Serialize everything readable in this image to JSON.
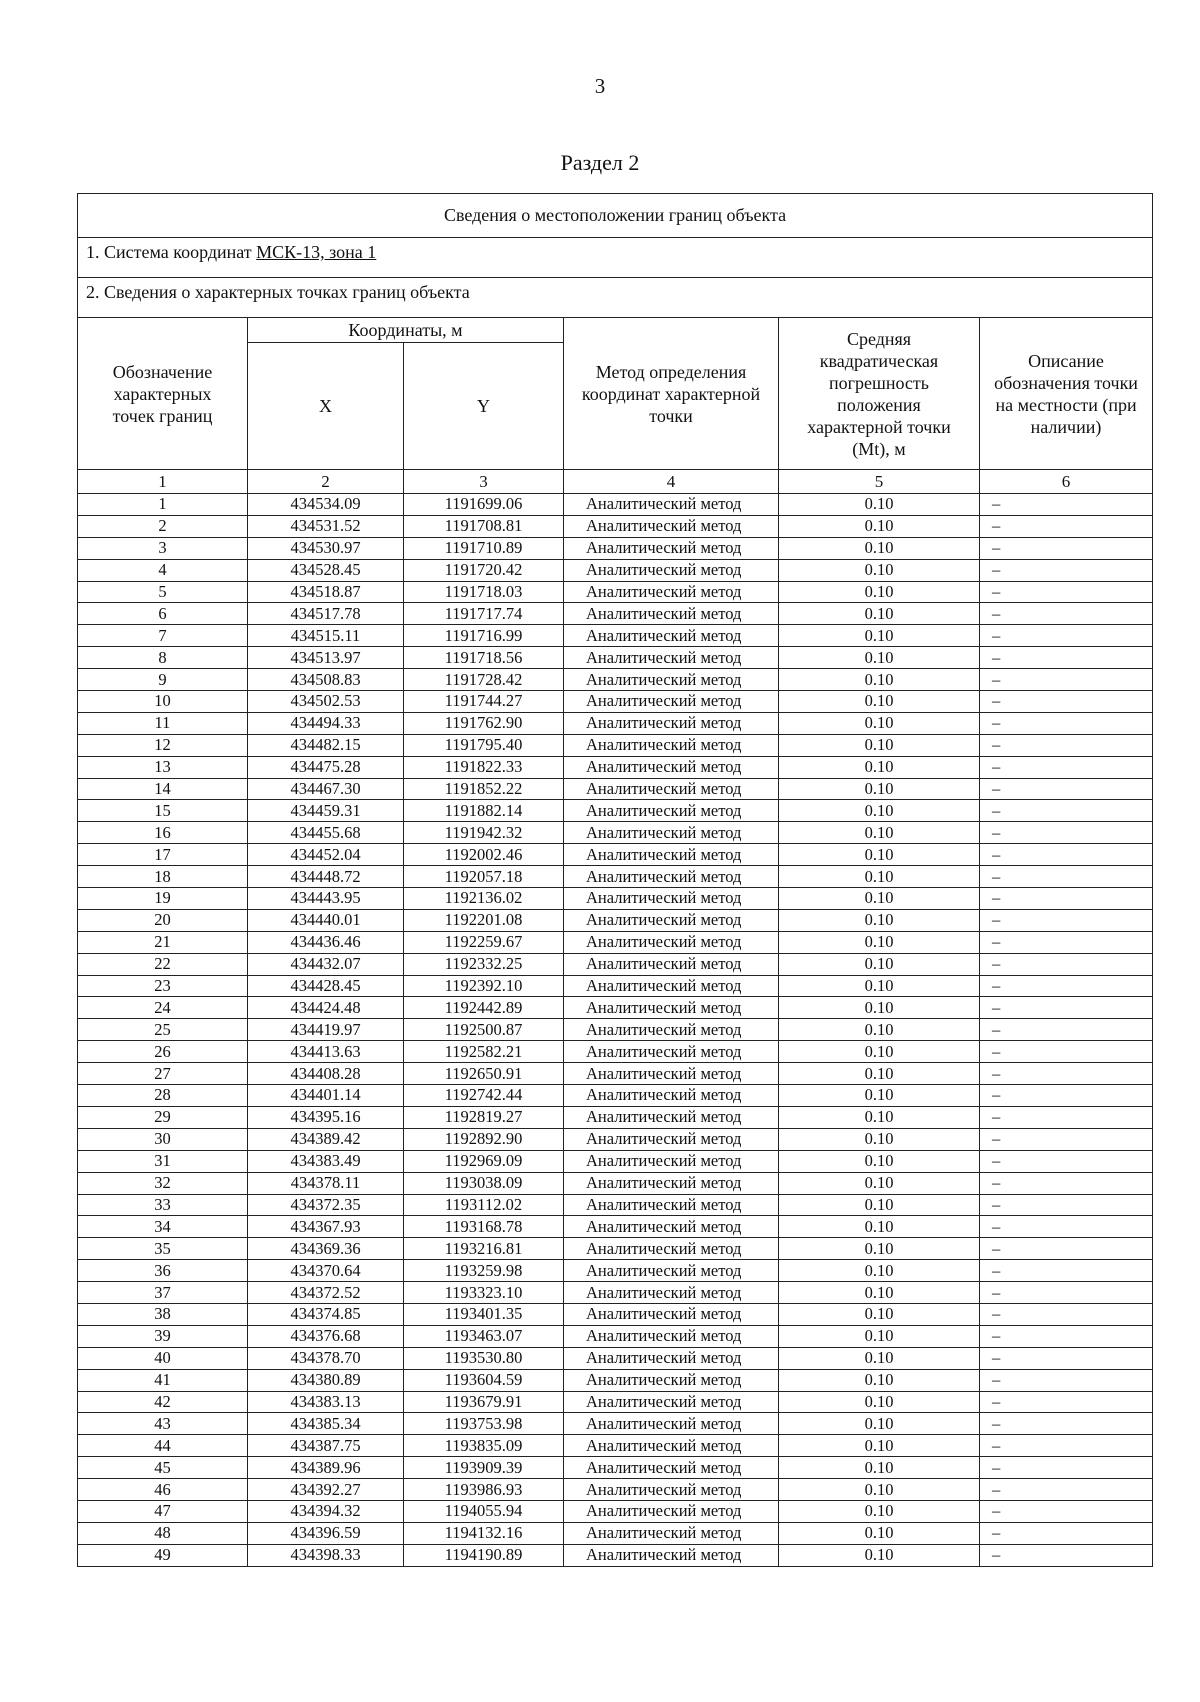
{
  "page_number": "3",
  "section_title": "Раздел 2",
  "table": {
    "title": "Сведения о местоположении границ объекта",
    "coord_system_label": "1. Система координат ",
    "coord_system_value": "МСК-13, зона 1",
    "points_label": "2. Сведения о характерных точках границ объекта",
    "headers": {
      "point": "Обозначение характерных точек границ",
      "coords": "Координаты, м",
      "x": "X",
      "y": "Y",
      "method": "Метод определения координат характерной точки",
      "error": "Средняя квадратическая погрешность положения характерной точки (Mt), м",
      "desc": "Описание обозначения точки на местности (при наличии)"
    },
    "column_numbers": [
      "1",
      "2",
      "3",
      "4",
      "5",
      "6"
    ],
    "rows": [
      [
        "1",
        "434534.09",
        "1191699.06",
        "Аналитический метод",
        "0.10",
        "–"
      ],
      [
        "2",
        "434531.52",
        "1191708.81",
        "Аналитический метод",
        "0.10",
        "–"
      ],
      [
        "3",
        "434530.97",
        "1191710.89",
        "Аналитический метод",
        "0.10",
        "–"
      ],
      [
        "4",
        "434528.45",
        "1191720.42",
        "Аналитический метод",
        "0.10",
        "–"
      ],
      [
        "5",
        "434518.87",
        "1191718.03",
        "Аналитический метод",
        "0.10",
        "–"
      ],
      [
        "6",
        "434517.78",
        "1191717.74",
        "Аналитический метод",
        "0.10",
        "–"
      ],
      [
        "7",
        "434515.11",
        "1191716.99",
        "Аналитический метод",
        "0.10",
        "–"
      ],
      [
        "8",
        "434513.97",
        "1191718.56",
        "Аналитический метод",
        "0.10",
        "–"
      ],
      [
        "9",
        "434508.83",
        "1191728.42",
        "Аналитический метод",
        "0.10",
        "–"
      ],
      [
        "10",
        "434502.53",
        "1191744.27",
        "Аналитический метод",
        "0.10",
        "–"
      ],
      [
        "11",
        "434494.33",
        "1191762.90",
        "Аналитический метод",
        "0.10",
        "–"
      ],
      [
        "12",
        "434482.15",
        "1191795.40",
        "Аналитический метод",
        "0.10",
        "–"
      ],
      [
        "13",
        "434475.28",
        "1191822.33",
        "Аналитический метод",
        "0.10",
        "–"
      ],
      [
        "14",
        "434467.30",
        "1191852.22",
        "Аналитический метод",
        "0.10",
        "–"
      ],
      [
        "15",
        "434459.31",
        "1191882.14",
        "Аналитический метод",
        "0.10",
        "–"
      ],
      [
        "16",
        "434455.68",
        "1191942.32",
        "Аналитический метод",
        "0.10",
        "–"
      ],
      [
        "17",
        "434452.04",
        "1192002.46",
        "Аналитический метод",
        "0.10",
        "–"
      ],
      [
        "18",
        "434448.72",
        "1192057.18",
        "Аналитический метод",
        "0.10",
        "–"
      ],
      [
        "19",
        "434443.95",
        "1192136.02",
        "Аналитический метод",
        "0.10",
        "–"
      ],
      [
        "20",
        "434440.01",
        "1192201.08",
        "Аналитический метод",
        "0.10",
        "–"
      ],
      [
        "21",
        "434436.46",
        "1192259.67",
        "Аналитический метод",
        "0.10",
        "–"
      ],
      [
        "22",
        "434432.07",
        "1192332.25",
        "Аналитический метод",
        "0.10",
        "–"
      ],
      [
        "23",
        "434428.45",
        "1192392.10",
        "Аналитический метод",
        "0.10",
        "–"
      ],
      [
        "24",
        "434424.48",
        "1192442.89",
        "Аналитический метод",
        "0.10",
        "–"
      ],
      [
        "25",
        "434419.97",
        "1192500.87",
        "Аналитический метод",
        "0.10",
        "–"
      ],
      [
        "26",
        "434413.63",
        "1192582.21",
        "Аналитический метод",
        "0.10",
        "–"
      ],
      [
        "27",
        "434408.28",
        "1192650.91",
        "Аналитический метод",
        "0.10",
        "–"
      ],
      [
        "28",
        "434401.14",
        "1192742.44",
        "Аналитический метод",
        "0.10",
        "–"
      ],
      [
        "29",
        "434395.16",
        "1192819.27",
        "Аналитический метод",
        "0.10",
        "–"
      ],
      [
        "30",
        "434389.42",
        "1192892.90",
        "Аналитический метод",
        "0.10",
        "–"
      ],
      [
        "31",
        "434383.49",
        "1192969.09",
        "Аналитический метод",
        "0.10",
        "–"
      ],
      [
        "32",
        "434378.11",
        "1193038.09",
        "Аналитический метод",
        "0.10",
        "–"
      ],
      [
        "33",
        "434372.35",
        "1193112.02",
        "Аналитический метод",
        "0.10",
        "–"
      ],
      [
        "34",
        "434367.93",
        "1193168.78",
        "Аналитический метод",
        "0.10",
        "–"
      ],
      [
        "35",
        "434369.36",
        "1193216.81",
        "Аналитический метод",
        "0.10",
        "–"
      ],
      [
        "36",
        "434370.64",
        "1193259.98",
        "Аналитический метод",
        "0.10",
        "–"
      ],
      [
        "37",
        "434372.52",
        "1193323.10",
        "Аналитический метод",
        "0.10",
        "–"
      ],
      [
        "38",
        "434374.85",
        "1193401.35",
        "Аналитический метод",
        "0.10",
        "–"
      ],
      [
        "39",
        "434376.68",
        "1193463.07",
        "Аналитический метод",
        "0.10",
        "–"
      ],
      [
        "40",
        "434378.70",
        "1193530.80",
        "Аналитический метод",
        "0.10",
        "–"
      ],
      [
        "41",
        "434380.89",
        "1193604.59",
        "Аналитический метод",
        "0.10",
        "–"
      ],
      [
        "42",
        "434383.13",
        "1193679.91",
        "Аналитический метод",
        "0.10",
        "–"
      ],
      [
        "43",
        "434385.34",
        "1193753.98",
        "Аналитический метод",
        "0.10",
        "–"
      ],
      [
        "44",
        "434387.75",
        "1193835.09",
        "Аналитический метод",
        "0.10",
        "–"
      ],
      [
        "45",
        "434389.96",
        "1193909.39",
        "Аналитический метод",
        "0.10",
        "–"
      ],
      [
        "46",
        "434392.27",
        "1193986.93",
        "Аналитический метод",
        "0.10",
        "–"
      ],
      [
        "47",
        "434394.32",
        "1194055.94",
        "Аналитический метод",
        "0.10",
        "–"
      ],
      [
        "48",
        "434396.59",
        "1194132.16",
        "Аналитический метод",
        "0.10",
        "–"
      ],
      [
        "49",
        "434398.33",
        "1194190.89",
        "Аналитический метод",
        "0.10",
        "–"
      ]
    ]
  }
}
